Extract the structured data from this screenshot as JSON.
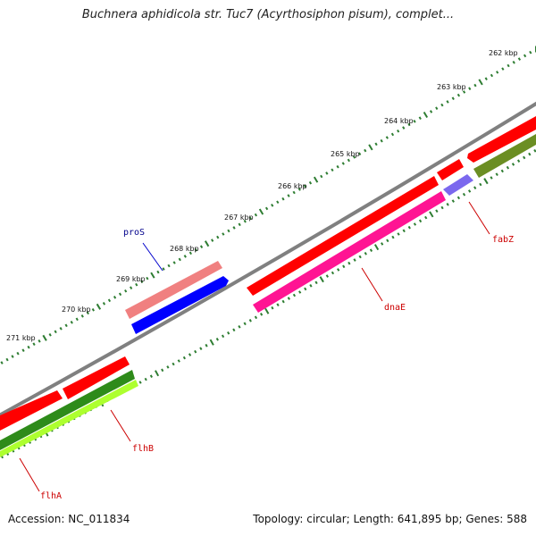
{
  "title": "Buchnera aphidicola str. Tuc7 (Acyrthosiphon pisum), complet...",
  "footer": {
    "accession": "Accession: NC_011834",
    "summary": "Topology: circular; Length: 641,895 bp; Genes: 588"
  },
  "colors": {
    "backbone": "#808080",
    "tick": "#2e7d32",
    "label_forward": "#00008b",
    "label_reverse": "#cc0000"
  },
  "ticks": [
    {
      "label": "262 kbp",
      "kbp": 262
    },
    {
      "label": "263 kbp",
      "kbp": 263
    },
    {
      "label": "264 kbp",
      "kbp": 264
    },
    {
      "label": "265 kbp",
      "kbp": 265
    },
    {
      "label": "266 kbp",
      "kbp": 266
    },
    {
      "label": "267 kbp",
      "kbp": 267
    },
    {
      "label": "268 kbp",
      "kbp": 268
    },
    {
      "label": "269 kbp",
      "kbp": 269
    },
    {
      "label": "270 kbp",
      "kbp": 270
    },
    {
      "label": "271 kbp",
      "kbp": 271
    }
  ],
  "genes": [
    {
      "name": "proS",
      "strand": "forward",
      "color": "#0000ff"
    },
    {
      "name": "dnaE",
      "strand": "reverse",
      "color": "#ff1493"
    },
    {
      "name": "fabZ",
      "strand": "reverse",
      "color": "#7b68ee"
    },
    {
      "name": "flhB",
      "strand": "reverse",
      "color": "#2e8b1a"
    },
    {
      "name": "flhA",
      "strand": "reverse",
      "color": "#adff2f"
    }
  ],
  "features_forward_outer": [
    {
      "id": "cds-proS",
      "color": "#f08080"
    }
  ],
  "features_reverse_outer": [
    {
      "id": "cds-upstream",
      "color": "#ff0000"
    },
    {
      "id": "cds-fabZ",
      "color": "#ff0000"
    },
    {
      "id": "cds-dnaE",
      "color": "#ff0000"
    },
    {
      "id": "cds-flhB",
      "color": "#ff0000"
    },
    {
      "id": "cds-flhA",
      "color": "#ff0000"
    }
  ],
  "features_reverse_inner": [
    {
      "id": "gene-upstream",
      "color": "#6b8e23"
    }
  ]
}
